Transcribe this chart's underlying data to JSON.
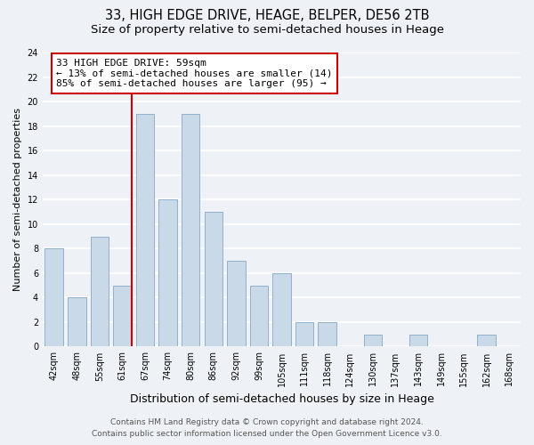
{
  "title": "33, HIGH EDGE DRIVE, HEAGE, BELPER, DE56 2TB",
  "subtitle": "Size of property relative to semi-detached houses in Heage",
  "xlabel": "Distribution of semi-detached houses by size in Heage",
  "ylabel": "Number of semi-detached properties",
  "bin_labels": [
    "42sqm",
    "48sqm",
    "55sqm",
    "61sqm",
    "67sqm",
    "74sqm",
    "80sqm",
    "86sqm",
    "92sqm",
    "99sqm",
    "105sqm",
    "111sqm",
    "118sqm",
    "124sqm",
    "130sqm",
    "137sqm",
    "143sqm",
    "149sqm",
    "155sqm",
    "162sqm",
    "168sqm"
  ],
  "counts": [
    8,
    4,
    9,
    5,
    19,
    12,
    19,
    11,
    7,
    5,
    6,
    2,
    2,
    0,
    1,
    0,
    1,
    0,
    0,
    1,
    0
  ],
  "bar_color": "#c9d9e8",
  "bar_edgecolor": "#8fb0cc",
  "property_value_idx": 3,
  "vline_color": "#cc0000",
  "annotation_text": "33 HIGH EDGE DRIVE: 59sqm\n← 13% of semi-detached houses are smaller (14)\n85% of semi-detached houses are larger (95) →",
  "annotation_box_edgecolor": "#cc0000",
  "annotation_box_facecolor": "#ffffff",
  "ylim": [
    0,
    24
  ],
  "yticks": [
    0,
    2,
    4,
    6,
    8,
    10,
    12,
    14,
    16,
    18,
    20,
    22,
    24
  ],
  "footer_line1": "Contains HM Land Registry data © Crown copyright and database right 2024.",
  "footer_line2": "Contains public sector information licensed under the Open Government Licence v3.0.",
  "background_color": "#eef2f7",
  "grid_color": "#ffffff",
  "title_fontsize": 10.5,
  "subtitle_fontsize": 9.5,
  "xlabel_fontsize": 9,
  "ylabel_fontsize": 8,
  "tick_fontsize": 7,
  "annotation_fontsize": 8,
  "footer_fontsize": 6.5
}
